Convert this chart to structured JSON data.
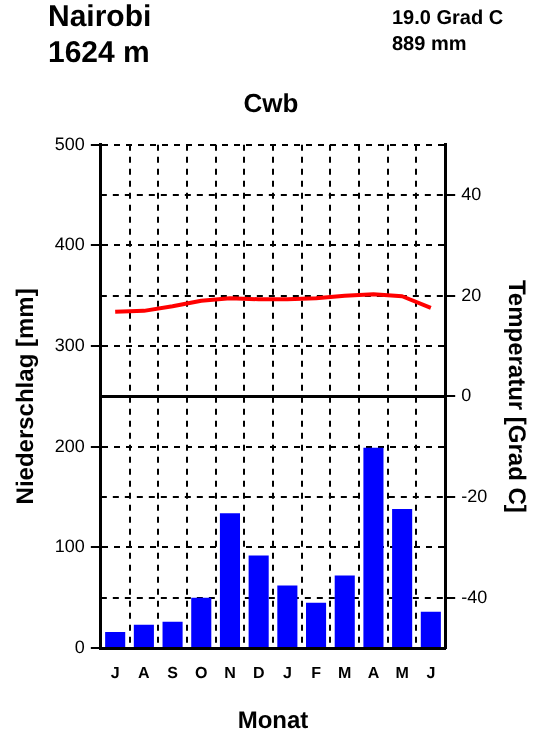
{
  "chart_data": {
    "type": "bar",
    "title": "Nairobi",
    "subtitle": "1624 m",
    "annotations": [
      "19.0 Grad C",
      "889 mm",
      "Cwb"
    ],
    "xlabel": "Monat",
    "ylabel": "Niederschlag [mm]",
    "y2label": "Temperatur [Grad C]",
    "categories": [
      "J",
      "A",
      "S",
      "O",
      "N",
      "D",
      "J",
      "F",
      "M",
      "A",
      "M",
      "J"
    ],
    "series": [
      {
        "color": "#0000ff",
        "values": [
          16,
          23,
          26,
          50,
          134,
          92,
          62,
          45,
          72,
          199,
          138,
          36
        ]
      },
      {
        "type": "line",
        "axis": "y2",
        "color": "#ff0000",
        "values": [
          16.8,
          17.0,
          17.9,
          19.0,
          19.5,
          19.3,
          19.3,
          19.5,
          20.0,
          20.3,
          19.9,
          17.6
        ]
      }
    ],
    "ylim": [
      0,
      500
    ],
    "yticks": [
      0,
      100,
      200,
      300,
      400,
      500
    ],
    "y2lim": [
      -50,
      50
    ],
    "y2ticks": [
      -40,
      -20,
      0,
      20,
      40
    ],
    "ref_lines": [
      {
        "axis": "y2",
        "value": 0,
        "color": "#000000",
        "line_style": "solid"
      }
    ],
    "grid": true,
    "marker": "none",
    "line_style": "solid"
  }
}
